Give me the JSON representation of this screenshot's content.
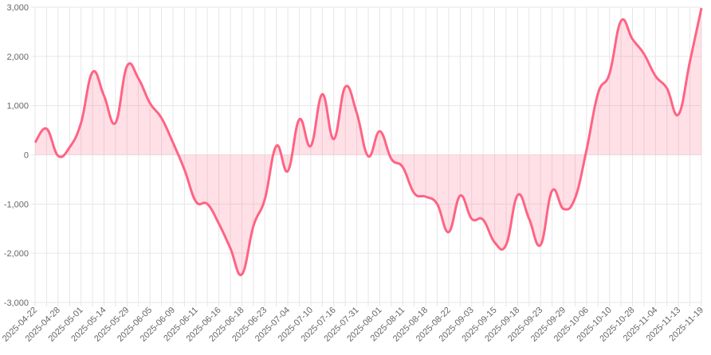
{
  "chart_data": {
    "type": "line",
    "categories": [
      "2025-04-22",
      null,
      "2025-04-28",
      null,
      "2025-05-01",
      null,
      "2025-05-14",
      null,
      "2025-05-29",
      null,
      "2025-06-05",
      null,
      "2025-06-09",
      null,
      "2025-06-11",
      null,
      "2025-06-16",
      null,
      "2025-06-18",
      null,
      "2025-06-23",
      null,
      "2025-07-04",
      null,
      "2025-07-10",
      null,
      "2025-07-16",
      null,
      "2025-07-31",
      null,
      "2025-08-01",
      null,
      "2025-08-11",
      null,
      "2025-08-18",
      null,
      "2025-08-22",
      null,
      "2025-09-03",
      null,
      "2025-09-15",
      null,
      "2025-09-18",
      null,
      "2025-09-23",
      null,
      "2025-09-29",
      null,
      "2025-10-06",
      null,
      "2025-10-10",
      null,
      "2025-10-28",
      null,
      "2025-11-04",
      null,
      "2025-11-13",
      null,
      "2025-11-19"
    ],
    "series": [
      {
        "color": "#ff6384",
        "fill": "rgba(255,99,132,0.2)",
        "values": [
          250,
          530,
          -20,
          150,
          650,
          1680,
          1200,
          650,
          1800,
          1550,
          1050,
          750,
          250,
          -300,
          -950,
          -1000,
          -1400,
          -1900,
          -2430,
          -1450,
          -900,
          180,
          -330,
          720,
          180,
          1230,
          320,
          1380,
          850,
          -30,
          480,
          -80,
          -250,
          -780,
          -850,
          -1000,
          -1570,
          -830,
          -1300,
          -1320,
          -1780,
          -1830,
          -820,
          -1300,
          -1830,
          -730,
          -1100,
          -880,
          100,
          1250,
          1650,
          2720,
          2350,
          2050,
          1600,
          1350,
          820,
          1900,
          2980
        ]
      }
    ],
    "ylim": [
      -3000,
      3000
    ],
    "yticks": [
      {
        "value": -3000,
        "label": "-3,000"
      },
      {
        "value": -2000,
        "label": "-2,000"
      },
      {
        "value": -1000,
        "label": "-1,000"
      },
      0,
      {
        "value": 1000,
        "label": "1,000"
      },
      {
        "value": 2000,
        "label": "2,000"
      },
      {
        "value": 3000,
        "label": "3,000"
      }
    ],
    "grid": true
  }
}
